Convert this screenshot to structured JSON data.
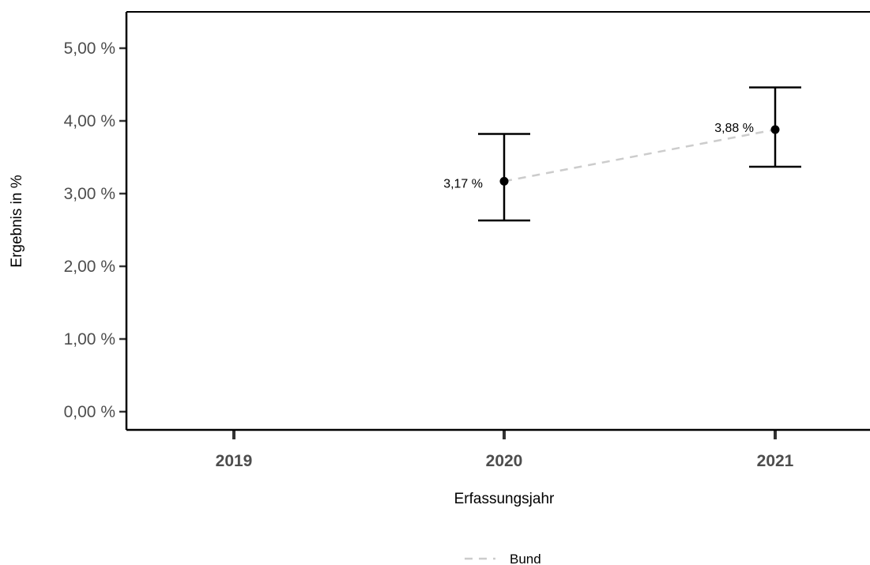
{
  "chart_data": {
    "type": "scatter",
    "xlabel": "Erfassungsjahr",
    "ylabel": "Ergebnis in %",
    "categories": [
      "2019",
      "2020",
      "2021"
    ],
    "ylim": [
      0,
      5
    ],
    "yticks": [
      0,
      1,
      2,
      3,
      4,
      5
    ],
    "ytick_labels": [
      "0,00 %",
      "1,00 %",
      "2,00 %",
      "3,00 %",
      "4,00 %",
      "5,00 %"
    ],
    "grid": false,
    "series": [
      {
        "name": "Bund",
        "line_style": "dashed",
        "line_color": "#cccccc",
        "point_color": "#000000",
        "points": [
          {
            "x": "2020",
            "y": 3.17,
            "ci_low": 2.63,
            "ci_high": 3.82,
            "label": "3,17 %"
          },
          {
            "x": "2021",
            "y": 3.88,
            "ci_low": 3.37,
            "ci_high": 4.46,
            "label": "3,88 %"
          }
        ]
      }
    ],
    "legend": {
      "position": "bottom",
      "entries": [
        "Bund"
      ]
    }
  }
}
